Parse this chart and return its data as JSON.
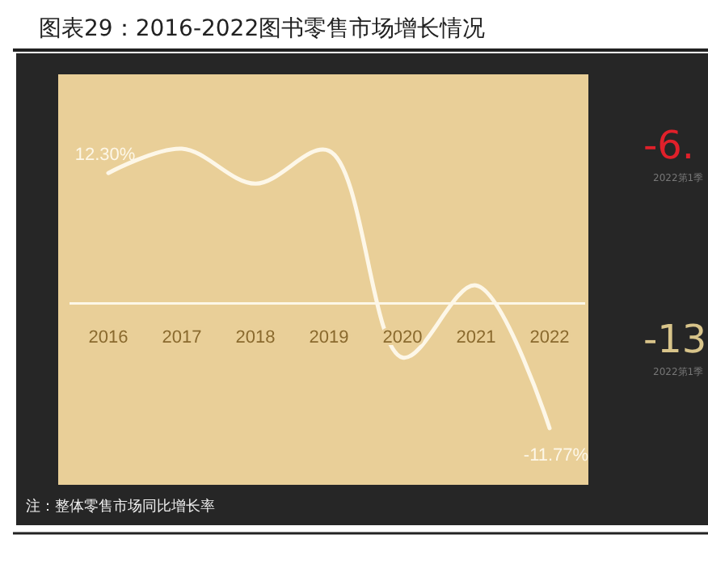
{
  "chart_data": {
    "type": "line",
    "title": "图表29：2016-2022图书零售市场增长情况",
    "categories": [
      "2016",
      "2017",
      "2018",
      "2019",
      "2020",
      "2021",
      "2022"
    ],
    "series": [
      {
        "color": "#fdf7e8",
        "values": [
          12.3,
          14.6,
          11.3,
          14.4,
          -5.1,
          1.7,
          -11.77
        ],
        "value_labels": [
          "12.30%",
          null,
          null,
          null,
          null,
          null,
          "-11.77%"
        ]
      }
    ],
    "marker": "none",
    "line_style": "solid",
    "annotations": [
      "注：整体零售市场同比增长率",
      "-6.",
      "2022第1季",
      "-13.",
      "2022第1季"
    ]
  }
}
